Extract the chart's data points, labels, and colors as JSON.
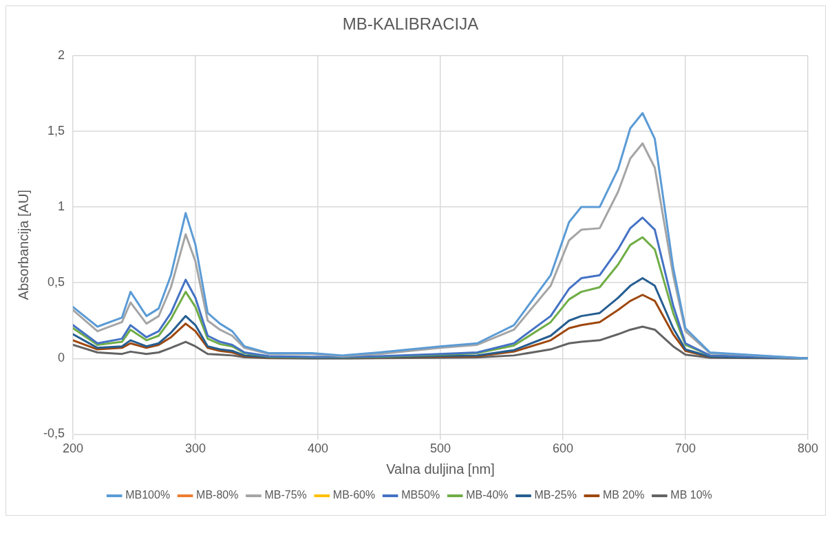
{
  "chart_data": {
    "type": "line",
    "title": "MB-KALIBRACIJA",
    "xlabel": "Valna duljina [nm]",
    "ylabel": "Absorbancija [AU]",
    "x": [
      200,
      220,
      240,
      247,
      260,
      270,
      280,
      292,
      300,
      310,
      320,
      330,
      340,
      360,
      395,
      420,
      450,
      500,
      530,
      560,
      590,
      605,
      615,
      630,
      645,
      655,
      665,
      675,
      690,
      700,
      720,
      800
    ],
    "series": [
      {
        "name": "MB100%",
        "color": "#5b9bd5",
        "values": [
          0.34,
          0.21,
          0.27,
          0.44,
          0.28,
          0.33,
          0.55,
          0.96,
          0.75,
          0.3,
          0.23,
          0.18,
          0.08,
          0.035,
          0.035,
          0.02,
          0.04,
          0.08,
          0.1,
          0.22,
          0.55,
          0.9,
          1.0,
          1.0,
          1.25,
          1.52,
          1.62,
          1.45,
          0.6,
          0.2,
          0.04,
          0
        ]
      },
      {
        "name": "MB-80%",
        "color": "#ed7d31",
        "values": [
          null,
          null,
          null,
          null,
          null,
          null,
          null,
          null,
          null,
          null,
          null,
          null,
          null,
          null,
          null,
          null,
          null,
          null,
          null,
          null,
          null,
          null,
          null,
          null,
          null,
          null,
          null,
          null,
          null,
          null,
          null,
          null
        ]
      },
      {
        "name": "MB-75%",
        "color": "#a5a5a5",
        "values": [
          0.32,
          0.18,
          0.24,
          0.37,
          0.23,
          0.28,
          0.47,
          0.82,
          0.64,
          0.25,
          0.19,
          0.15,
          0.07,
          0.03,
          0.03,
          0.015,
          0.03,
          0.07,
          0.09,
          0.19,
          0.48,
          0.78,
          0.85,
          0.86,
          1.1,
          1.32,
          1.42,
          1.26,
          0.55,
          0.18,
          0.035,
          0
        ]
      },
      {
        "name": "MB-60%",
        "color": "#ffc000",
        "values": [
          null,
          null,
          null,
          null,
          null,
          null,
          null,
          null,
          null,
          null,
          null,
          null,
          null,
          null,
          null,
          null,
          null,
          null,
          null,
          null,
          null,
          null,
          null,
          null,
          null,
          null,
          null,
          null,
          null,
          null,
          null,
          null
        ]
      },
      {
        "name": "MB50%",
        "color": "#4472c4",
        "values": [
          0.22,
          0.1,
          0.13,
          0.22,
          0.14,
          0.18,
          0.3,
          0.52,
          0.4,
          0.15,
          0.11,
          0.09,
          0.04,
          0.015,
          0.01,
          0.01,
          0.015,
          0.03,
          0.04,
          0.1,
          0.28,
          0.46,
          0.53,
          0.55,
          0.72,
          0.86,
          0.93,
          0.85,
          0.35,
          0.1,
          0.02,
          0
        ]
      },
      {
        "name": "MB-40%",
        "color": "#70ad47",
        "values": [
          0.2,
          0.09,
          0.11,
          0.19,
          0.12,
          0.15,
          0.26,
          0.44,
          0.34,
          0.13,
          0.095,
          0.08,
          0.035,
          0.012,
          0.008,
          0.008,
          0.012,
          0.025,
          0.035,
          0.085,
          0.24,
          0.39,
          0.44,
          0.47,
          0.62,
          0.75,
          0.8,
          0.72,
          0.3,
          0.09,
          0.02,
          0
        ]
      },
      {
        "name": "MB-25%",
        "color": "#255e91",
        "values": [
          0.16,
          0.07,
          0.08,
          0.12,
          0.08,
          0.1,
          0.17,
          0.28,
          0.22,
          0.08,
          0.06,
          0.05,
          0.02,
          0.008,
          0.005,
          0.005,
          0.008,
          0.017,
          0.02,
          0.055,
          0.15,
          0.25,
          0.28,
          0.3,
          0.4,
          0.48,
          0.53,
          0.48,
          0.2,
          0.06,
          0.012,
          0
        ]
      },
      {
        "name": "MB 20%",
        "color": "#9e480e",
        "values": [
          0.12,
          0.06,
          0.07,
          0.1,
          0.07,
          0.09,
          0.14,
          0.23,
          0.18,
          0.07,
          0.05,
          0.04,
          0.015,
          0.005,
          0.004,
          0.004,
          0.006,
          0.013,
          0.015,
          0.045,
          0.12,
          0.2,
          0.22,
          0.24,
          0.32,
          0.38,
          0.42,
          0.38,
          0.16,
          0.05,
          0.01,
          0
        ]
      },
      {
        "name": "MB 10%",
        "color": "#636363",
        "values": [
          0.09,
          0.04,
          0.03,
          0.045,
          0.03,
          0.04,
          0.07,
          0.11,
          0.08,
          0.03,
          0.025,
          0.02,
          0.008,
          0.002,
          0,
          0,
          0.002,
          0.005,
          0.007,
          0.02,
          0.06,
          0.1,
          0.11,
          0.12,
          0.16,
          0.19,
          0.21,
          0.19,
          0.08,
          0.025,
          0.005,
          0
        ]
      }
    ],
    "xlim": [
      200,
      800
    ],
    "xticks": [
      200,
      300,
      400,
      500,
      600,
      700,
      800
    ],
    "ylim": [
      -0.5,
      2
    ],
    "yticks": [
      {
        "value": -0.5,
        "label": "-0,5"
      },
      0,
      {
        "value": 0.5,
        "label": "0,5"
      },
      1,
      {
        "value": 1.5,
        "label": "1,5"
      },
      2
    ],
    "grid": true,
    "legend": "bottom",
    "marker": "none",
    "line_style": "solid"
  }
}
